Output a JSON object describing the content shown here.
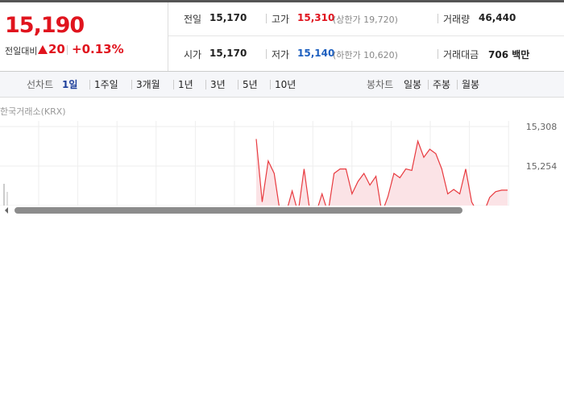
{
  "summary": {
    "price": "15,190",
    "change_label": "전일대비",
    "change": "20",
    "change_pct": "+0.13%"
  },
  "stats": [
    [
      {
        "label": "전일",
        "value": "15,170"
      },
      {
        "label": "고가",
        "value": "15,310",
        "note": "(상한가 19,720)"
      },
      {
        "label": "거래량",
        "value": "46,440"
      }
    ],
    [
      {
        "label": "시가",
        "value": "15,170"
      },
      {
        "label": "저가",
        "value": "15,140",
        "note": "(하한가 10,620)"
      },
      {
        "label": "거래대금",
        "value": "706 백만"
      }
    ]
  ],
  "toolbar": {
    "line_chart": {
      "label": "선차트",
      "options": [
        "1일",
        "1주일",
        "3개월",
        "1년",
        "3년",
        "5년",
        "10년"
      ]
    },
    "candle_chart": {
      "label": "봉차트",
      "options": [
        "일봉",
        "주봉",
        "월봉"
      ]
    }
  },
  "chart": {
    "source": "한국거래소(KRX)",
    "yticks": [
      {
        "value": 15308,
        "label": "15,308"
      },
      {
        "value": 15254,
        "label": "15,254"
      }
    ],
    "values": [
      15291,
      15205,
      15261,
      15244,
      15190,
      15190,
      15220,
      15190,
      15250,
      15190,
      15190,
      15216,
      15190,
      15244,
      15250,
      15250,
      15216,
      15233,
      15244,
      15228,
      15240,
      15190,
      15212,
      15244,
      15238,
      15250,
      15248,
      15288,
      15266,
      15277,
      15271,
      15250,
      15216,
      15222,
      15216,
      15250,
      15205,
      15190,
      15190,
      15211,
      15219,
      15221,
      15221
    ]
  }
}
